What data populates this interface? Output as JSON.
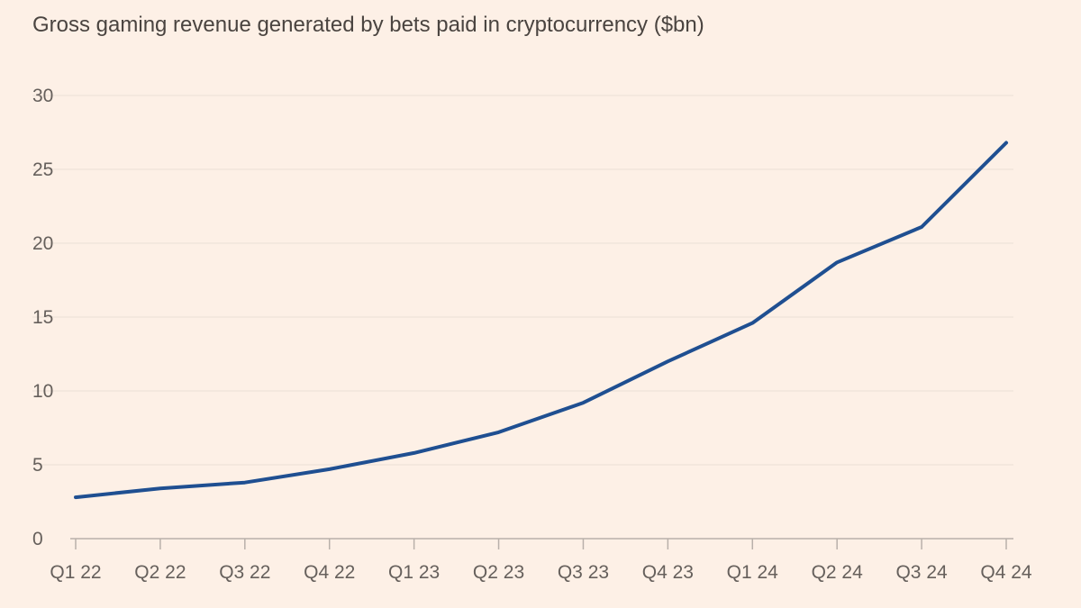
{
  "chart_data": {
    "type": "line",
    "title": "Gross gaming revenue generated by bets paid in cryptocurrency ($bn)",
    "xlabel": "",
    "ylabel": "",
    "categories": [
      "Q1 22",
      "Q2 22",
      "Q3 22",
      "Q4 22",
      "Q1 23",
      "Q2 23",
      "Q3 23",
      "Q4 23",
      "Q1 24",
      "Q2 24",
      "Q3 24",
      "Q4 24"
    ],
    "series": [
      {
        "name": "Gross gaming revenue",
        "color": "#1f4f91",
        "values": [
          2.8,
          3.4,
          3.8,
          4.7,
          5.8,
          7.2,
          9.2,
          12.0,
          14.6,
          18.7,
          21.1,
          26.8
        ]
      }
    ],
    "ylim": [
      0,
      30
    ],
    "yticks": [
      0,
      5,
      10,
      15,
      20,
      25,
      30
    ],
    "grid": true
  }
}
